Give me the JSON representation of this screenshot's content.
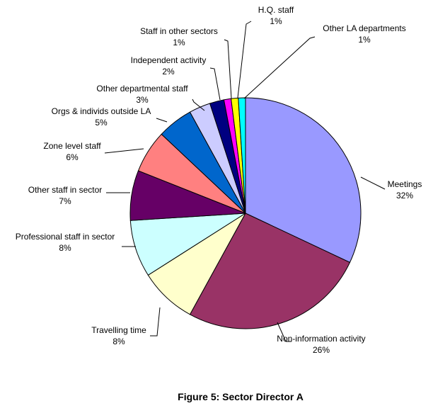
{
  "chart_data": {
    "type": "pie",
    "title": "",
    "start_angle_deg": 90,
    "direction": "clockwise",
    "slices": [
      {
        "label": "Meetings",
        "value_label": "32%",
        "value": 32,
        "color": "#9999FF"
      },
      {
        "label": "Non-information activity",
        "value_label": "26%",
        "value": 26,
        "color": "#993366"
      },
      {
        "label": "Travelling time",
        "value_label": "8%",
        "value": 8,
        "color": "#FFFFCC"
      },
      {
        "label": "Professional staff in sector",
        "value_label": "8%",
        "value": 8,
        "color": "#CCFFFF"
      },
      {
        "label": "Other staff in sector",
        "value_label": "7%",
        "value": 7,
        "color": "#660066"
      },
      {
        "label": "Zone level staff",
        "value_label": "6%",
        "value": 6,
        "color": "#FF8080"
      },
      {
        "label": "Orgs & individs outside LA",
        "value_label": "5%",
        "value": 5,
        "color": "#0066CC"
      },
      {
        "label": "Other departmental staff",
        "value_label": "3%",
        "value": 3,
        "color": "#CCCCFF"
      },
      {
        "label": "Independent activity",
        "value_label": "2%",
        "value": 2,
        "color": "#000080"
      },
      {
        "label": "Staff in other sectors",
        "value_label": "1%",
        "value": 1,
        "color": "#FF00FF"
      },
      {
        "label": "H.Q. staff",
        "value_label": "1%",
        "value": 1,
        "color": "#FFFF00"
      },
      {
        "label": "Other LA departments",
        "value_label": "1%",
        "value": 1,
        "color": "#00FFFF"
      }
    ]
  },
  "figure": {
    "caption": "Figure 5: Sector Director A"
  }
}
